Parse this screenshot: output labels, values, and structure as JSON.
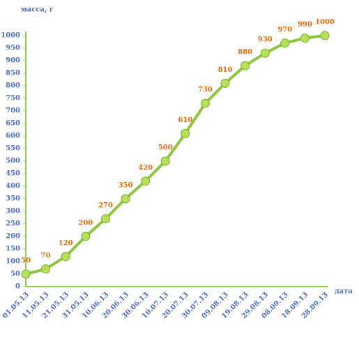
{
  "chart_data": {
    "type": "line",
    "y_label": "масса, г",
    "x_label": "дата",
    "categories": [
      "01.05.13",
      "11.05.13",
      "21.05.13",
      "31.05.13",
      "10.06.13",
      "20.06.13",
      "30.06.13",
      "10.07.13",
      "20.07.13",
      "30.07.13",
      "09.08.13",
      "19.08.13",
      "29.08.13",
      "08.09.13",
      "18.09.13",
      "28.09.13"
    ],
    "values": [
      50,
      70,
      120,
      200,
      270,
      350,
      420,
      500,
      610,
      730,
      810,
      880,
      930,
      970,
      990,
      1000
    ],
    "color": "#8cc63f",
    "ylim": [
      0,
      1000
    ],
    "yticks": [
      0,
      50,
      100,
      150,
      200,
      250,
      300,
      350,
      400,
      450,
      500,
      550,
      600,
      650,
      700,
      750,
      800,
      850,
      900,
      950,
      1000
    ],
    "data_labels": true
  }
}
